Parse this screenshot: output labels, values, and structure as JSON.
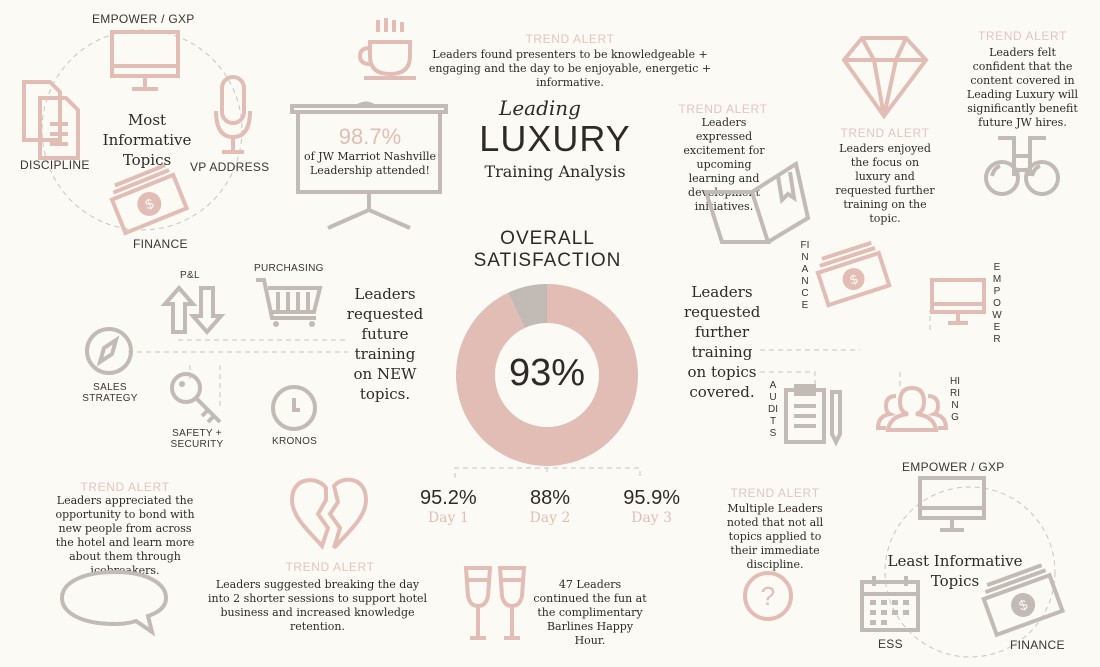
{
  "title": {
    "script": "Leading",
    "main": "LUXURY",
    "sub": "Training Analysis"
  },
  "colors": {
    "pink": "#e2bdb6",
    "gray": "#c2bab5",
    "background": "#fbfaf5"
  },
  "most_informative": {
    "title_line1": "Most Informative",
    "title_line2": "Topics",
    "items": [
      "EMPOWER / GXP",
      "DISCIPLINE",
      "VP ADDRESS",
      "FINANCE"
    ]
  },
  "attendance": {
    "value": "98.7%",
    "text_line1": "of JW Marriot Nashville",
    "text_line2": "Leadership attended!"
  },
  "alerts": {
    "top_center": {
      "label": "TREND ALERT",
      "text": "Leaders found presenters to be knowledgeable + engaging and the day to be enjoyable, energetic + informative."
    },
    "learning": {
      "label": "TREND ALERT",
      "text": "Leaders expressed excitement for upcoming learning and development initiatives."
    },
    "luxury": {
      "label": "TREND ALERT",
      "text": "Leaders enjoyed the focus on luxury and  requested further training on the topic."
    },
    "confident": {
      "label": "TREND ALERT",
      "text": "Leaders felt confident that the content covered in Leading Luxury will significantly benefit future JW hires."
    },
    "bond": {
      "label": "TREND ALERT",
      "text": "Leaders appreciated the opportunity to bond with new people from across the hotel and learn more about them through icebreakers."
    },
    "sessions": {
      "label": "TREND ALERT",
      "text": "Leaders suggested breaking the day into 2 shorter sessions to support hotel business and increased knowledge retention."
    },
    "discipline": {
      "label": "TREND ALERT",
      "text": "Multiple Leaders noted that not all topics applied to their immediate discipline."
    }
  },
  "new_topics": {
    "text": "Leaders requested future training on NEW topics.",
    "items": [
      "P&L",
      "PURCHASING",
      "SALES STRATEGY",
      "SAFETY + SECURITY",
      "KRONOS"
    ]
  },
  "covered_topics": {
    "text": "Leaders requested further training on topics covered.",
    "items": [
      "FINANCE",
      "EMPOWER",
      "AUDITS",
      "HIRING"
    ]
  },
  "satisfaction": {
    "title_line1": "OVERALL",
    "title_line2": "SATISFACTION",
    "value": "93%",
    "percent": 93,
    "days": [
      {
        "value": "95.2%",
        "label": "Day 1"
      },
      {
        "value": "88%",
        "label": "Day 2"
      },
      {
        "value": "95.9%",
        "label": "Day 3"
      }
    ]
  },
  "happy_hour": {
    "text": "47 Leaders continued the fun at the complimentary Barlines Happy Hour."
  },
  "least_informative": {
    "title_line1": "Least Informative",
    "title_line2": "Topics",
    "items": [
      "EMPOWER / GXP",
      "ESS",
      "FINANCE"
    ]
  }
}
